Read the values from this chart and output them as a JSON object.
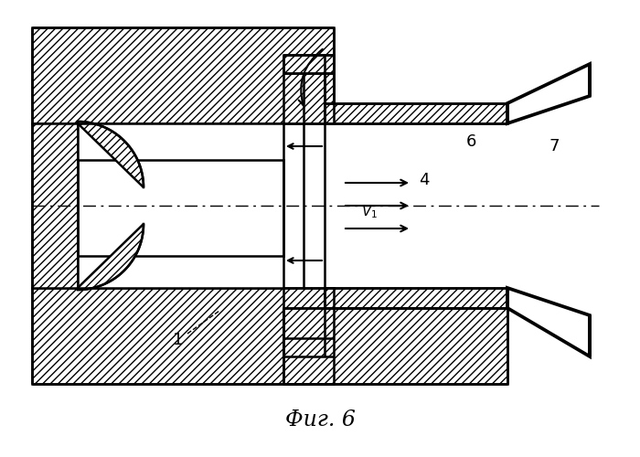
{
  "title": "Фиг. 6",
  "bg_color": "#ffffff",
  "line_color": "#000000",
  "lw": 1.8,
  "hatch": "////",
  "fig_width": 7.0,
  "fig_height": 5.0,
  "dpi": 100
}
